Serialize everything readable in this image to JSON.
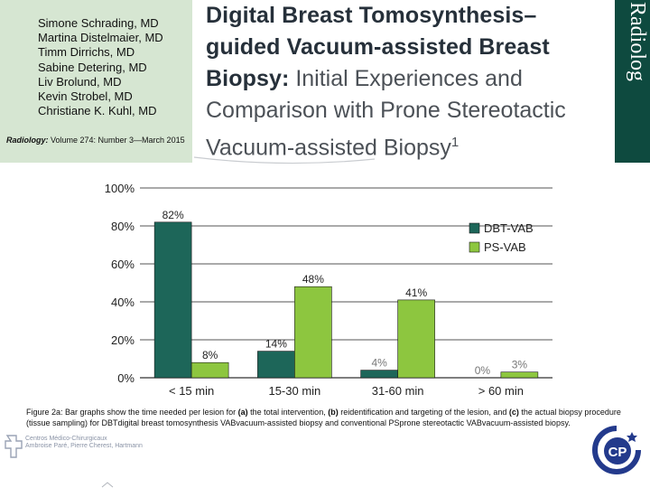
{
  "header": {
    "authors": [
      "Simone Schrading, MD",
      "Martina Distelmaier, MD",
      "Timm Dirrichs, MD",
      "Sabine Detering, MD",
      "Liv Brolund, MD",
      "Kevin Strobel, MD",
      "Christiane K. Kuhl, MD"
    ],
    "citation_journal": "Radiology:",
    "citation_rest": " Volume 274: Number 3—March 2015",
    "title_bold_line1": "Digital Breast Tomosynthesis–",
    "title_bold_line2": "guided Vacuum-assisted Breast",
    "title_bold_line3_start": "Biopsy:",
    "title_light_line3_end": " Initial Experiences and",
    "title_light_line4": "Comparison with Prone Stereotactic",
    "title_light_line5": "Vacuum-assisted Biopsy",
    "title_superscript": "1",
    "journal_band_text": "Radiolog",
    "colors": {
      "author_box": "#d6e6d2",
      "journal_band": "#0e4a3f"
    }
  },
  "chart_data": {
    "type": "bar",
    "categories": [
      "< 15 min",
      "15-30 min",
      "31-60 min",
      "> 60 min"
    ],
    "series": [
      {
        "name": "DBT-VAB",
        "values": [
          82,
          14,
          4,
          0
        ],
        "labels": [
          "82%",
          "14%",
          "4%",
          "0%"
        ],
        "color": "#1d6659"
      },
      {
        "name": "PS-VAB",
        "values": [
          8,
          48,
          41,
          3
        ],
        "labels": [
          "8%",
          "48%",
          "41%",
          "3%"
        ],
        "color": "#8dc63f"
      }
    ],
    "y_ticks": [
      "0%",
      "20%",
      "40%",
      "60%",
      "80%",
      "100%"
    ],
    "ylim": [
      0,
      100
    ],
    "grid": true,
    "legend_position": "right"
  },
  "caption": {
    "p1": "Figure 2a: Bar graphs show the time needed per lesion for ",
    "b1": "(a)",
    "p2": " the total intervention, ",
    "b2": "(b)",
    "p3": " reidentification and targeting of the lesion, and ",
    "b3": "(c)",
    "p4": " the actual biopsy procedure (tissue sampling) for DBTdigital breast tomosynthesis VABvacuum-assisted biopsy and conventional PSprone stereotactic VABvacuum-assisted biopsy."
  },
  "footer": {
    "left_logo_line1": "Centros Médico-Chirurgicaux",
    "left_logo_line2": "Ambroise Paré, Pierre Cherest, Hartmann",
    "right_logo_letters": "CP"
  }
}
